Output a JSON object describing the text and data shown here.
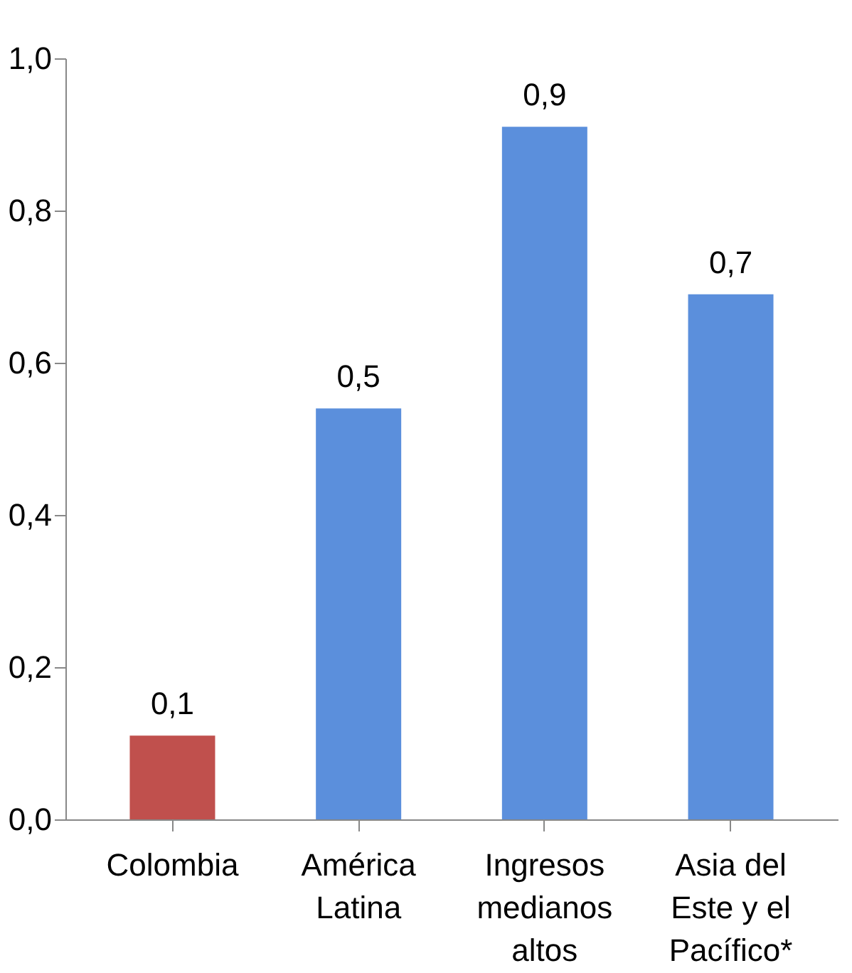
{
  "chart_data": {
    "type": "bar",
    "categories": [
      "Colombia",
      "América Latina",
      "Ingresos medianos altos",
      "Asia del Este y el Pacífico*"
    ],
    "values": [
      0.11,
      0.54,
      0.91,
      0.69
    ],
    "colors": [
      "#c0504d",
      "#5b8fdc",
      "#5b8fdc",
      "#5b8fdc"
    ],
    "value_labels": [
      "0,1",
      "0,5",
      "0,9",
      "0,7"
    ],
    "ylim": [
      0,
      1
    ],
    "yticks": [
      {
        "value": 0,
        "label": "0,0"
      },
      {
        "value": 0.2,
        "label": "0,2"
      },
      {
        "value": 0.4,
        "label": "0,4"
      },
      {
        "value": 0.6,
        "label": "0,6"
      },
      {
        "value": 0.8,
        "label": "0,8"
      },
      {
        "value": 1,
        "label": "1,0"
      }
    ],
    "grid": false
  }
}
